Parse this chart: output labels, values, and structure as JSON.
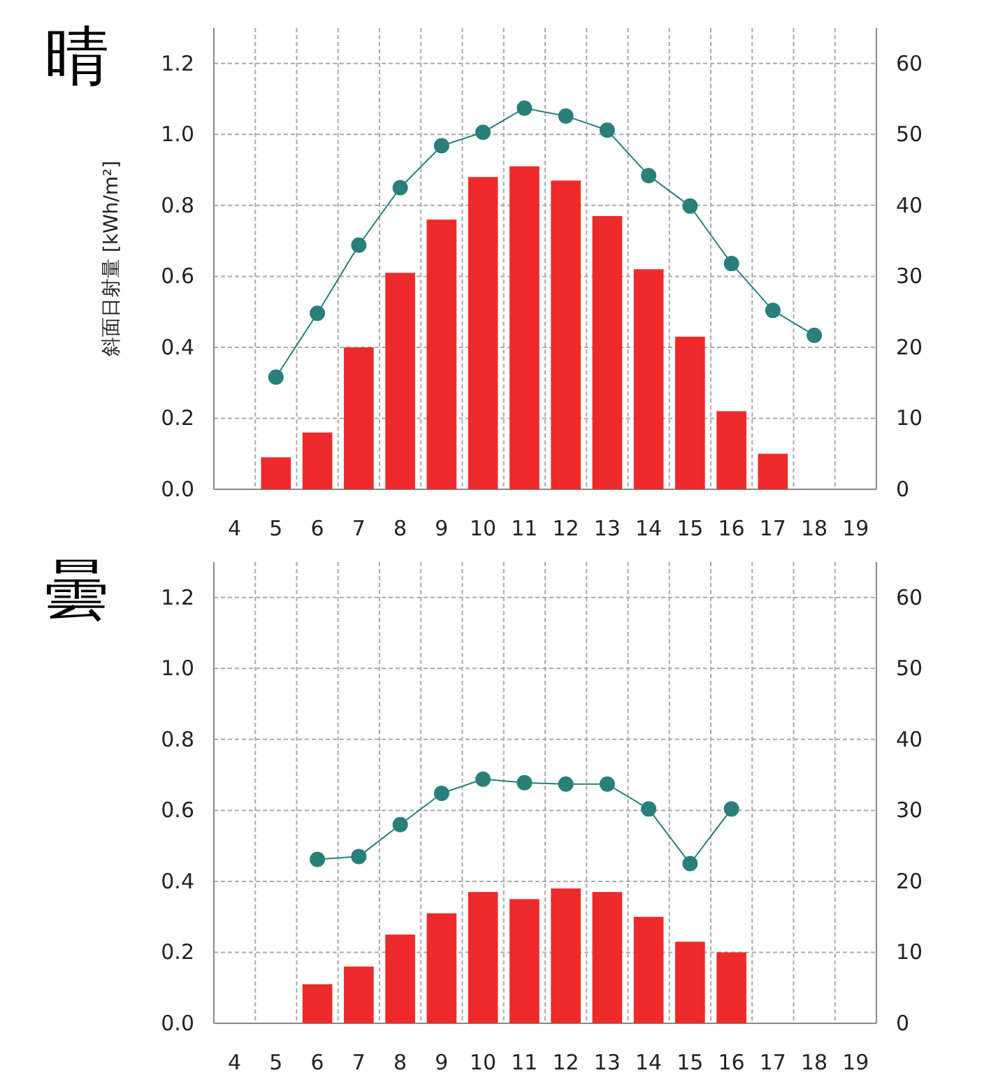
{
  "chart_data": [
    {
      "type": "bar",
      "title": "晴",
      "ylabel": "斜面日射量 [kWh/m²]",
      "categories": [
        "4",
        "5",
        "6",
        "7",
        "8",
        "9",
        "10",
        "11",
        "12",
        "13",
        "14",
        "15",
        "16",
        "17",
        "18",
        "19"
      ],
      "series": [
        {
          "color": "#ee2a2a",
          "values": [
            null,
            0.09,
            0.16,
            0.4,
            0.61,
            0.76,
            0.88,
            0.91,
            0.87,
            0.77,
            0.62,
            0.43,
            0.22,
            0.1,
            null,
            null
          ]
        },
        {
          "type": "line",
          "axis": "y2",
          "color": "#2a7f7a",
          "marker": "circle",
          "line_style": "solid",
          "values": [
            null,
            15.8,
            24.8,
            34.4,
            42.5,
            48.4,
            50.3,
            53.7,
            52.6,
            50.6,
            44.2,
            39.9,
            31.8,
            25.2,
            21.7,
            null
          ]
        }
      ],
      "ylim": [
        0,
        1.3
      ],
      "yticks": [
        {
          "value": 0,
          "label": "0.0"
        },
        {
          "value": 0.2,
          "label": "0.2"
        },
        {
          "value": 0.4,
          "label": "0.4"
        },
        {
          "value": 0.6,
          "label": "0.6"
        },
        {
          "value": 0.8,
          "label": "0.8"
        },
        {
          "value": 1,
          "label": "1.0"
        },
        {
          "value": 1.2,
          "label": "1.2"
        }
      ],
      "y2lim": [
        0,
        65
      ],
      "y2ticks": [
        0,
        10,
        20,
        30,
        40,
        50,
        60
      ],
      "grid": true
    },
    {
      "type": "bar",
      "title": "曇",
      "categories": [
        "4",
        "5",
        "6",
        "7",
        "8",
        "9",
        "10",
        "11",
        "12",
        "13",
        "14",
        "15",
        "16",
        "17",
        "18",
        "19"
      ],
      "series": [
        {
          "color": "#ee2a2a",
          "values": [
            null,
            null,
            0.11,
            0.16,
            0.25,
            0.31,
            0.37,
            0.35,
            0.38,
            0.37,
            0.3,
            0.23,
            0.2,
            null,
            null,
            null
          ]
        },
        {
          "type": "line",
          "axis": "y2",
          "color": "#2a7f7a",
          "marker": "circle",
          "line_style": "solid",
          "values": [
            null,
            null,
            23.1,
            23.5,
            28.0,
            32.4,
            34.4,
            33.9,
            33.7,
            33.7,
            30.2,
            22.5,
            30.2,
            null,
            null,
            null
          ]
        }
      ],
      "ylim": [
        0,
        1.3
      ],
      "yticks": [
        {
          "value": 0,
          "label": "0.0"
        },
        {
          "value": 0.2,
          "label": "0.2"
        },
        {
          "value": 0.4,
          "label": "0.4"
        },
        {
          "value": 0.6,
          "label": "0.6"
        },
        {
          "value": 0.8,
          "label": "0.8"
        },
        {
          "value": 1,
          "label": "1.0"
        },
        {
          "value": 1.2,
          "label": "1.2"
        }
      ],
      "y2lim": [
        0,
        65
      ],
      "y2ticks": [
        0,
        10,
        20,
        30,
        40,
        50,
        60
      ],
      "grid": true
    }
  ]
}
